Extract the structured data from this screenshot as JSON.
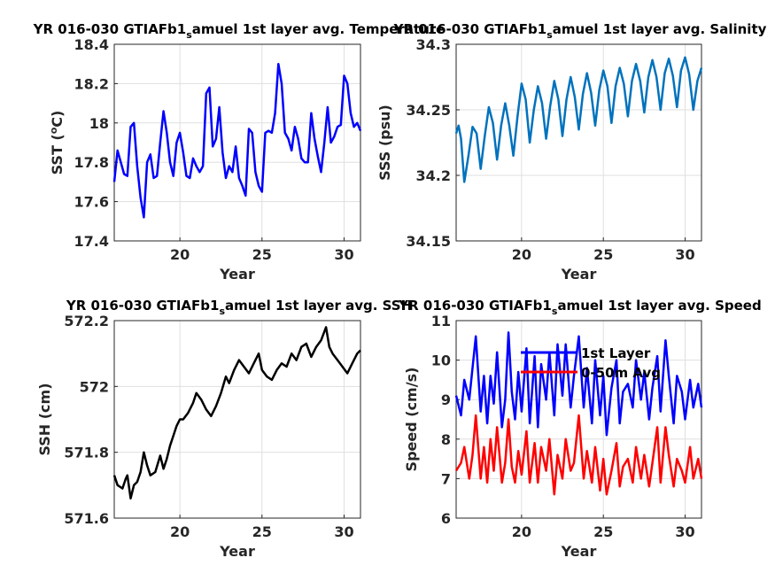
{
  "chart_data": [
    {
      "type": "line",
      "title_main": "YR 016-030 GTIAFb1",
      "title_sub": "s",
      "title_rest": "amuel 1st layer avg. Temperature",
      "xlabel": "Year",
      "ylabel_main": "SST (",
      "ylabel_sup": "o",
      "ylabel_rest": "C)",
      "xlim": [
        16,
        31
      ],
      "ylim": [
        17.4,
        18.4
      ],
      "xticks": [
        20,
        25,
        30
      ],
      "yticks": [
        17.4,
        17.6,
        17.8,
        18,
        18.2,
        18.4
      ],
      "ytick_labels": [
        "17.4",
        "17.6",
        "17.8",
        "18",
        "18.2",
        "18.4"
      ],
      "grid": true,
      "series": [
        {
          "color": "#0000ff",
          "x": [
            16.0,
            16.2,
            16.4,
            16.6,
            16.8,
            17.0,
            17.2,
            17.4,
            17.6,
            17.8,
            18.0,
            18.2,
            18.4,
            18.6,
            18.8,
            19.0,
            19.2,
            19.4,
            19.6,
            19.8,
            20.0,
            20.2,
            20.4,
            20.6,
            20.8,
            21.0,
            21.2,
            21.4,
            21.6,
            21.8,
            22.0,
            22.2,
            22.4,
            22.6,
            22.8,
            23.0,
            23.2,
            23.4,
            23.6,
            23.8,
            24.0,
            24.2,
            24.4,
            24.6,
            24.8,
            25.0,
            25.2,
            25.4,
            25.6,
            25.8,
            26.0,
            26.2,
            26.4,
            26.6,
            26.8,
            27.0,
            27.2,
            27.4,
            27.6,
            27.8,
            28.0,
            28.2,
            28.4,
            28.6,
            28.8,
            29.0,
            29.2,
            29.4,
            29.6,
            29.8,
            30.0,
            30.2,
            30.4,
            30.6,
            30.8,
            31.0
          ],
          "y": [
            17.7,
            17.86,
            17.8,
            17.74,
            17.73,
            17.98,
            18.0,
            17.78,
            17.62,
            17.52,
            17.8,
            17.84,
            17.72,
            17.73,
            17.9,
            18.06,
            17.95,
            17.8,
            17.73,
            17.9,
            17.95,
            17.85,
            17.73,
            17.72,
            17.82,
            17.78,
            17.75,
            17.78,
            18.15,
            18.18,
            17.88,
            17.92,
            18.08,
            17.85,
            17.72,
            17.78,
            17.75,
            17.88,
            17.72,
            17.68,
            17.63,
            17.97,
            17.95,
            17.75,
            17.68,
            17.65,
            17.95,
            17.96,
            17.95,
            18.05,
            18.3,
            18.2,
            17.95,
            17.92,
            17.86,
            17.98,
            17.92,
            17.82,
            17.8,
            17.8,
            18.05,
            17.92,
            17.83,
            17.75,
            17.9,
            18.08,
            17.9,
            17.93,
            17.98,
            17.99,
            18.24,
            18.2,
            18.05,
            17.98,
            18.0,
            17.96
          ]
        }
      ]
    },
    {
      "type": "line",
      "title_main": "YR 016-030 GTIAFb1",
      "title_sub": "s",
      "title_rest": "amuel 1st layer avg. Salinity",
      "xlabel": "Year",
      "ylabel_main": "SSS (psu)",
      "ylabel_sup": "",
      "ylabel_rest": "",
      "xlim": [
        16,
        31
      ],
      "ylim": [
        34.15,
        34.3
      ],
      "xticks": [
        20,
        25,
        30
      ],
      "yticks": [
        34.15,
        34.2,
        34.25,
        34.3
      ],
      "ytick_labels": [
        "34.15",
        "34.2",
        "34.25",
        "34.3"
      ],
      "grid": true,
      "series": [
        {
          "color": "#0072bd",
          "x": [
            16.0,
            16.15,
            16.3,
            16.5,
            16.75,
            17.0,
            17.25,
            17.5,
            17.75,
            18.0,
            18.25,
            18.5,
            18.75,
            19.0,
            19.25,
            19.5,
            19.75,
            20.0,
            20.25,
            20.5,
            20.75,
            21.0,
            21.25,
            21.5,
            21.75,
            22.0,
            22.25,
            22.5,
            22.75,
            23.0,
            23.25,
            23.5,
            23.75,
            24.0,
            24.25,
            24.5,
            24.75,
            25.0,
            25.25,
            25.5,
            25.75,
            26.0,
            26.25,
            26.5,
            26.75,
            27.0,
            27.25,
            27.5,
            27.75,
            28.0,
            28.25,
            28.5,
            28.75,
            29.0,
            29.25,
            29.5,
            29.75,
            30.0,
            30.25,
            30.5,
            30.75,
            31.0
          ],
          "y": [
            34.232,
            34.238,
            34.228,
            34.195,
            34.215,
            34.237,
            34.232,
            34.205,
            34.23,
            34.252,
            34.24,
            34.212,
            34.238,
            34.255,
            34.238,
            34.215,
            34.245,
            34.27,
            34.258,
            34.225,
            34.25,
            34.268,
            34.255,
            34.228,
            34.253,
            34.272,
            34.258,
            34.23,
            34.258,
            34.275,
            34.26,
            34.235,
            34.262,
            34.278,
            34.263,
            34.238,
            34.265,
            34.28,
            34.268,
            34.24,
            34.268,
            34.282,
            34.27,
            34.245,
            34.272,
            34.285,
            34.272,
            34.248,
            34.275,
            34.288,
            34.275,
            34.25,
            34.278,
            34.289,
            34.276,
            34.252,
            34.28,
            34.29,
            34.277,
            34.25,
            34.272,
            34.282
          ]
        }
      ]
    },
    {
      "type": "line",
      "title_main": "YR 016-030 GTIAFb1",
      "title_sub": "s",
      "title_rest": "amuel 1st layer avg. SSH",
      "xlabel": "Year",
      "ylabel_main": "SSH (cm)",
      "ylabel_sup": "",
      "ylabel_rest": "",
      "xlim": [
        16,
        31
      ],
      "ylim": [
        571.6,
        572.2
      ],
      "xticks": [
        20,
        25,
        30
      ],
      "yticks": [
        571.6,
        571.8,
        572,
        572.2
      ],
      "ytick_labels": [
        "571.6",
        "571.8",
        "572",
        "572.2"
      ],
      "grid": true,
      "series": [
        {
          "color": "#000000",
          "x": [
            16.0,
            16.2,
            16.5,
            16.7,
            16.8,
            17.0,
            17.2,
            17.4,
            17.6,
            17.8,
            18.0,
            18.2,
            18.5,
            18.8,
            19.0,
            19.2,
            19.4,
            19.6,
            19.8,
            20.0,
            20.2,
            20.5,
            20.8,
            21.0,
            21.3,
            21.6,
            21.9,
            22.2,
            22.5,
            22.8,
            23.0,
            23.3,
            23.6,
            23.9,
            24.2,
            24.5,
            24.8,
            25.0,
            25.3,
            25.6,
            25.9,
            26.2,
            26.5,
            26.8,
            27.1,
            27.4,
            27.7,
            28.0,
            28.3,
            28.6,
            28.9,
            29.1,
            29.3,
            29.6,
            29.9,
            30.2,
            30.5,
            30.8,
            31.0
          ],
          "y": [
            571.73,
            571.7,
            571.69,
            571.72,
            571.73,
            571.66,
            571.7,
            571.71,
            571.74,
            571.8,
            571.76,
            571.73,
            571.74,
            571.79,
            571.75,
            571.78,
            571.82,
            571.85,
            571.88,
            571.9,
            571.9,
            571.92,
            571.95,
            571.98,
            571.96,
            571.93,
            571.91,
            571.94,
            571.98,
            572.03,
            572.01,
            572.05,
            572.08,
            572.06,
            572.04,
            572.07,
            572.1,
            572.05,
            572.03,
            572.02,
            572.05,
            572.07,
            572.06,
            572.1,
            572.08,
            572.12,
            572.13,
            572.09,
            572.12,
            572.14,
            572.18,
            572.12,
            572.1,
            572.08,
            572.06,
            572.04,
            572.07,
            572.1,
            572.11
          ]
        }
      ]
    },
    {
      "type": "line",
      "title_main": "YR 016-030 GTIAFb1",
      "title_sub": "s",
      "title_rest": "amuel 1st layer avg. Speed",
      "xlabel": "Year",
      "ylabel_main": "Speed (cm/s)",
      "ylabel_sup": "",
      "ylabel_rest": "",
      "xlim": [
        16,
        31
      ],
      "ylim": [
        6,
        11
      ],
      "xticks": [
        20,
        25,
        30
      ],
      "yticks": [
        6,
        7,
        8,
        9,
        10,
        11
      ],
      "ytick_labels": [
        "6",
        "7",
        "8",
        "9",
        "10",
        "11"
      ],
      "grid": true,
      "legend": "top-left",
      "series": [
        {
          "name": "1st Layer",
          "color": "#0000ff",
          "x": [
            16.0,
            16.3,
            16.5,
            16.8,
            17.0,
            17.2,
            17.5,
            17.7,
            17.9,
            18.1,
            18.3,
            18.5,
            18.8,
            19.0,
            19.2,
            19.4,
            19.6,
            19.8,
            20.0,
            20.3,
            20.5,
            20.8,
            21.0,
            21.2,
            21.5,
            21.7,
            22.0,
            22.2,
            22.5,
            22.7,
            23.0,
            23.2,
            23.5,
            23.8,
            24.0,
            24.3,
            24.5,
            24.8,
            25.0,
            25.2,
            25.5,
            25.8,
            26.0,
            26.2,
            26.5,
            26.8,
            27.0,
            27.3,
            27.5,
            27.8,
            28.0,
            28.3,
            28.5,
            28.8,
            29.0,
            29.3,
            29.5,
            29.8,
            30.0,
            30.3,
            30.5,
            30.8,
            31.0
          ],
          "y": [
            9.1,
            8.6,
            9.5,
            9.0,
            9.8,
            10.6,
            8.7,
            9.6,
            8.4,
            9.6,
            8.9,
            10.2,
            8.3,
            9.0,
            10.7,
            9.2,
            8.5,
            9.7,
            8.7,
            10.3,
            8.4,
            10.1,
            8.3,
            9.9,
            9.0,
            10.2,
            8.6,
            10.4,
            9.1,
            10.4,
            8.8,
            9.6,
            10.6,
            8.8,
            9.8,
            8.4,
            10.0,
            8.6,
            9.6,
            8.1,
            9.3,
            10.0,
            8.4,
            9.2,
            9.4,
            8.8,
            10.0,
            9.0,
            9.7,
            8.5,
            9.3,
            10.1,
            8.7,
            10.5,
            9.6,
            8.4,
            9.6,
            9.2,
            8.5,
            9.5,
            8.8,
            9.4,
            8.8
          ]
        },
        {
          "name": "0-50m Avg",
          "color": "#ff0000",
          "x": [
            16.0,
            16.3,
            16.5,
            16.8,
            17.0,
            17.2,
            17.5,
            17.7,
            17.9,
            18.1,
            18.3,
            18.5,
            18.8,
            19.0,
            19.2,
            19.4,
            19.6,
            19.8,
            20.0,
            20.3,
            20.5,
            20.8,
            21.0,
            21.2,
            21.5,
            21.7,
            22.0,
            22.2,
            22.5,
            22.7,
            23.0,
            23.2,
            23.5,
            23.8,
            24.0,
            24.3,
            24.5,
            24.8,
            25.0,
            25.2,
            25.5,
            25.8,
            26.0,
            26.2,
            26.5,
            26.8,
            27.0,
            27.3,
            27.5,
            27.8,
            28.0,
            28.3,
            28.5,
            28.8,
            29.0,
            29.3,
            29.5,
            29.8,
            30.0,
            30.3,
            30.5,
            30.8,
            31.0
          ],
          "y": [
            7.2,
            7.4,
            7.8,
            7.0,
            7.6,
            8.6,
            7.0,
            7.8,
            6.9,
            8.0,
            7.2,
            8.3,
            6.9,
            7.4,
            8.5,
            7.3,
            6.9,
            7.7,
            7.1,
            8.2,
            6.9,
            7.9,
            6.9,
            7.8,
            7.2,
            8.0,
            6.6,
            7.6,
            7.0,
            8.0,
            7.2,
            7.4,
            8.6,
            7.0,
            7.7,
            6.9,
            7.8,
            6.7,
            7.5,
            6.6,
            7.2,
            7.9,
            6.8,
            7.3,
            7.5,
            6.9,
            7.8,
            7.0,
            7.6,
            6.8,
            7.4,
            8.3,
            6.9,
            8.3,
            7.6,
            6.8,
            7.5,
            7.2,
            6.9,
            7.8,
            7.0,
            7.5,
            7.0
          ]
        }
      ]
    }
  ]
}
